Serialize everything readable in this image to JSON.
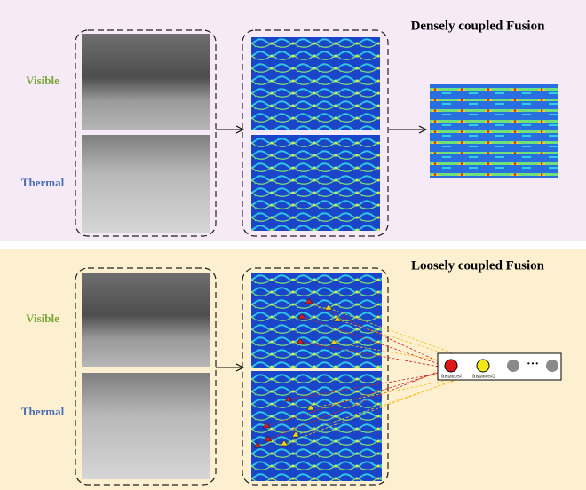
{
  "top": {
    "title": "Densely coupled Fusion",
    "labels": [
      "Visible",
      "Thermal"
    ]
  },
  "bottom": {
    "title": "Loosely coupled Fusion",
    "labels": [
      "Visible",
      "Thermal"
    ],
    "instances": [
      "Instance#1",
      "Instance#2"
    ],
    "ellipsis": "···"
  }
}
